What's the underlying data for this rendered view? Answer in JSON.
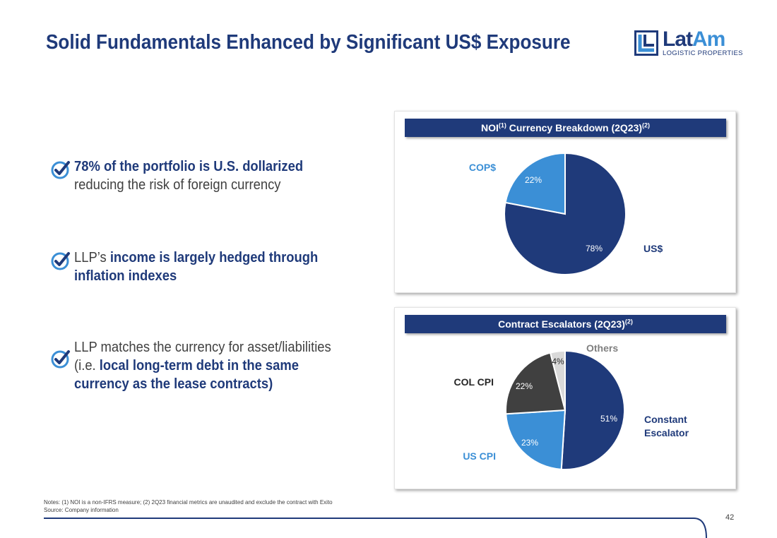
{
  "header": {
    "title": "Solid Fundamentals Enhanced by Significant US$ Exposure",
    "logo_word_a": "Lat",
    "logo_word_b": "Am",
    "logo_sub": "LOGISTIC PROPERTIES"
  },
  "bullets": [
    {
      "bold_prefix": "78% of the portfolio is U.S. dollarized",
      "plain": " reducing the risk of foreign currency"
    },
    {
      "plain_prefix": "LLP’s ",
      "bold": "income is largely hedged through inflation indexes"
    },
    {
      "plain_prefix": "LLP matches the currency for asset/liabilities (i.e. ",
      "bold": "local long-term debt in the same currency as the lease contracts)"
    }
  ],
  "panels": {
    "currency": {
      "title_pre": "NOI",
      "sup1": "(1)",
      "title_mid": " Currency Breakdown (2Q23)",
      "sup2": "(2)"
    },
    "escalators": {
      "title_pre": "Contract Escalators (2Q23)",
      "sup": "(2)"
    }
  },
  "chart_data": [
    {
      "type": "pie",
      "categories": [
        "US$",
        "COP$"
      ],
      "values": [
        78,
        22
      ],
      "data_labels": [
        "78%",
        "22%"
      ],
      "colors": [
        "#1f3a7a",
        "#3b8fd6"
      ],
      "start_angle_deg": 0,
      "direction": "clockwise"
    },
    {
      "type": "pie",
      "categories": [
        "Constant Escalator",
        "US CPI",
        "COL CPI",
        "Others"
      ],
      "values": [
        51,
        23,
        22,
        4
      ],
      "data_labels": [
        "51%",
        "23%",
        "22%",
        "4%"
      ],
      "colors": [
        "#1f3a7a",
        "#3b8fd6",
        "#404040",
        "#d9d9d9"
      ],
      "category_colors": [
        "#1f3a7a",
        "#3b8fd6",
        "#262626",
        "#7f7f7f"
      ],
      "start_angle_deg": 0,
      "direction": "clockwise"
    }
  ],
  "footer": {
    "notes_line1": "Notes: (1) NOI is a non-IFRS measure; (2) 2Q23 financial metrics are unaudited and exclude the contract with Exito",
    "notes_line2": "Source: Company information",
    "page_number": "42"
  }
}
